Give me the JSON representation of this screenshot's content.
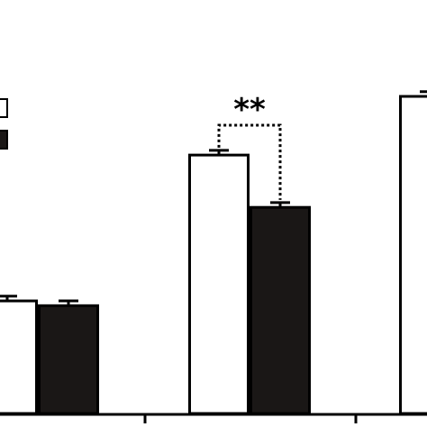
{
  "chart_data": {
    "type": "bar",
    "title": "",
    "xlabel": "",
    "ylabel": "",
    "ylim": [
      0,
      100
    ],
    "categories": [
      "",
      "",
      ""
    ],
    "series": [
      {
        "fill": "#ffffff",
        "values": [
          35.5,
          81.5,
          100
        ],
        "errors": [
          1.5,
          1.5,
          1.5
        ]
      },
      {
        "fill": "#1a1716",
        "values": [
          34.0,
          65.0,
          null
        ],
        "errors": [
          1.5,
          1.5,
          null
        ]
      }
    ],
    "legend": {
      "placement": "top-left"
    },
    "annotations": [
      {
        "text": "**",
        "between": [
          1,
          0,
          1,
          1
        ]
      }
    ],
    "grid": false
  }
}
